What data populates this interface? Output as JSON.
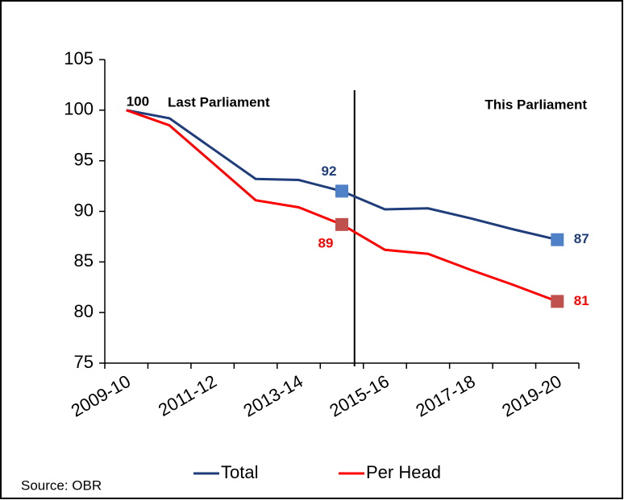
{
  "chart_data": {
    "type": "line",
    "categories": [
      "2009-10",
      null,
      "2011-12",
      null,
      "2013-14",
      null,
      "2015-16",
      null,
      "2017-18",
      null,
      "2019-20"
    ],
    "series": [
      {
        "name": "Total",
        "color": "#1f3d7a",
        "marker_color": "#4f81c9",
        "label_color": "#1f3d7a",
        "values": [
          100,
          99.2,
          96.2,
          93.2,
          93.1,
          92,
          90.2,
          90.3,
          89.3,
          88.2,
          87.2
        ],
        "value_labels": [
          "100",
          null,
          null,
          null,
          null,
          "92",
          null,
          null,
          null,
          null,
          "87"
        ]
      },
      {
        "name": "Per Head",
        "color": "#ff0000",
        "marker_color": "#c0504d",
        "label_color": "#ff0000",
        "values": [
          100,
          98.5,
          94.8,
          91.1,
          90.4,
          88.7,
          86.2,
          85.8,
          84.2,
          82.7,
          81.1
        ],
        "value_labels": [
          null,
          null,
          null,
          null,
          null,
          "89",
          null,
          null,
          null,
          null,
          "81"
        ]
      }
    ],
    "ylim": [
      75,
      105
    ],
    "yticks": [
      75,
      80,
      85,
      90,
      95,
      100,
      105
    ],
    "annotations": [
      "Last  Parliament",
      "This Parliament"
    ],
    "source": "Source: OBR",
    "legend": "bottom"
  }
}
